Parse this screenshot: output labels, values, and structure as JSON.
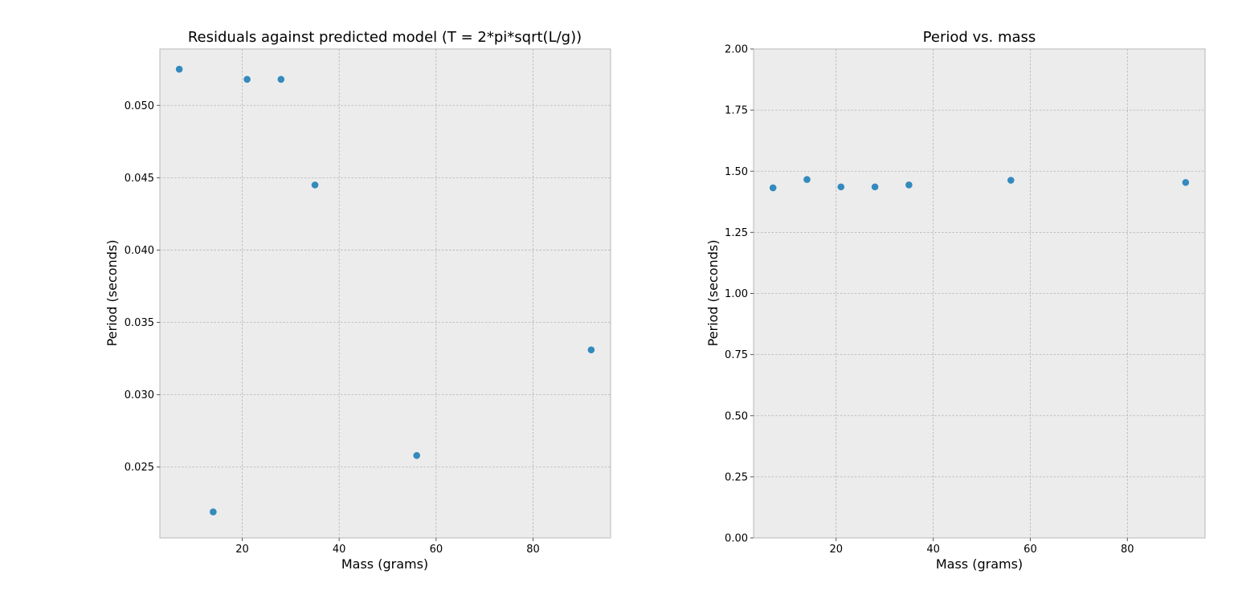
{
  "colors": {
    "point": "#348abd",
    "background": "#ececec",
    "grid": "#b2b2b2",
    "frame": "#b8b8b8"
  },
  "chart_data": [
    {
      "type": "scatter",
      "title": "Residuals against predicted model (T = 2*pi*sqrt(L/g))",
      "xlabel": "Mass (grams)",
      "ylabel": "Period (seconds)",
      "xlim": [
        3,
        96
      ],
      "ylim": [
        0.0201,
        0.0539
      ],
      "xticks": [
        20,
        40,
        60,
        80
      ],
      "xtick_labels": [
        "20",
        "40",
        "60",
        "80"
      ],
      "yticks": [
        0.025,
        0.03,
        0.035,
        0.04,
        0.045,
        0.05
      ],
      "ytick_labels": [
        "0.025",
        "0.030",
        "0.035",
        "0.040",
        "0.045",
        "0.050"
      ],
      "grid": true,
      "points": [
        {
          "x": 7,
          "y": 0.0525
        },
        {
          "x": 14,
          "y": 0.0219
        },
        {
          "x": 21,
          "y": 0.0518
        },
        {
          "x": 28,
          "y": 0.0518
        },
        {
          "x": 35,
          "y": 0.0445
        },
        {
          "x": 56,
          "y": 0.0258
        },
        {
          "x": 92,
          "y": 0.0331
        }
      ]
    },
    {
      "type": "scatter",
      "title": "Period vs. mass",
      "xlabel": "Mass (grams)",
      "ylabel": "Period (seconds)",
      "xlim": [
        3,
        96
      ],
      "ylim": [
        0,
        2
      ],
      "xticks": [
        20,
        40,
        60,
        80
      ],
      "xtick_labels": [
        "20",
        "40",
        "60",
        "80"
      ],
      "yticks": [
        0,
        0.25,
        0.5,
        0.75,
        1.0,
        1.25,
        1.5,
        1.75,
        2.0
      ],
      "ytick_labels": [
        "0.00",
        "0.25",
        "0.50",
        "0.75",
        "1.00",
        "1.25",
        "1.50",
        "1.75",
        "2.00"
      ],
      "grid": true,
      "points": [
        {
          "x": 7,
          "y": 1.432
        },
        {
          "x": 14,
          "y": 1.466
        },
        {
          "x": 21,
          "y": 1.436
        },
        {
          "x": 28,
          "y": 1.436
        },
        {
          "x": 35,
          "y": 1.444
        },
        {
          "x": 56,
          "y": 1.463
        },
        {
          "x": 92,
          "y": 1.454
        }
      ]
    }
  ]
}
